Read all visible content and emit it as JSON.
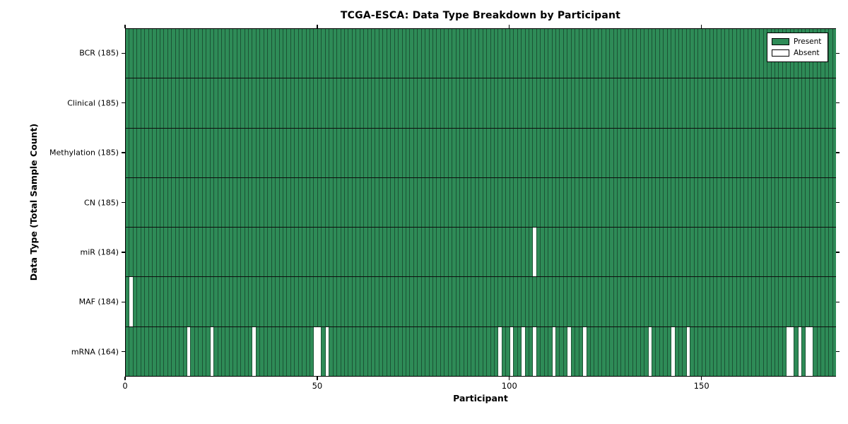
{
  "chart_data": {
    "type": "heatmap",
    "title": "TCGA-ESCA: Data Type Breakdown by Participant",
    "xlabel": "Participant",
    "ylabel": "Data Type (Total Sample Count)",
    "n_participants": 185,
    "x_range": [
      0,
      185
    ],
    "x_ticks": [
      0,
      50,
      100,
      150
    ],
    "grid": false,
    "legend_position": "upper right",
    "legend": [
      {
        "label": "Present",
        "color": "#2e8b57"
      },
      {
        "label": "Absent",
        "color": "#ffffff"
      }
    ],
    "colors": {
      "present": "#2e8b57",
      "absent": "#ffffff",
      "bar_edge": "#1c5335",
      "axis": "#000000"
    },
    "rows": [
      {
        "name": "BCR",
        "label": "BCR (185)",
        "total": 185,
        "absent": []
      },
      {
        "name": "Clinical",
        "label": "Clinical (185)",
        "total": 185,
        "absent": []
      },
      {
        "name": "Methylation",
        "label": "Methylation (185)",
        "total": 185,
        "absent": []
      },
      {
        "name": "CN",
        "label": "CN (185)",
        "total": 185,
        "absent": []
      },
      {
        "name": "miR",
        "label": "miR (184)",
        "total": 184,
        "absent": [
          106
        ]
      },
      {
        "name": "MAF",
        "label": "MAF (184)",
        "total": 184,
        "absent": [
          1
        ]
      },
      {
        "name": "mRNA",
        "label": "mRNA (164)",
        "total": 164,
        "absent": [
          16,
          22,
          33,
          49,
          50,
          52,
          97,
          100,
          103,
          106,
          111,
          115,
          119,
          136,
          142,
          146,
          172,
          173,
          175,
          177,
          178
        ]
      }
    ]
  }
}
